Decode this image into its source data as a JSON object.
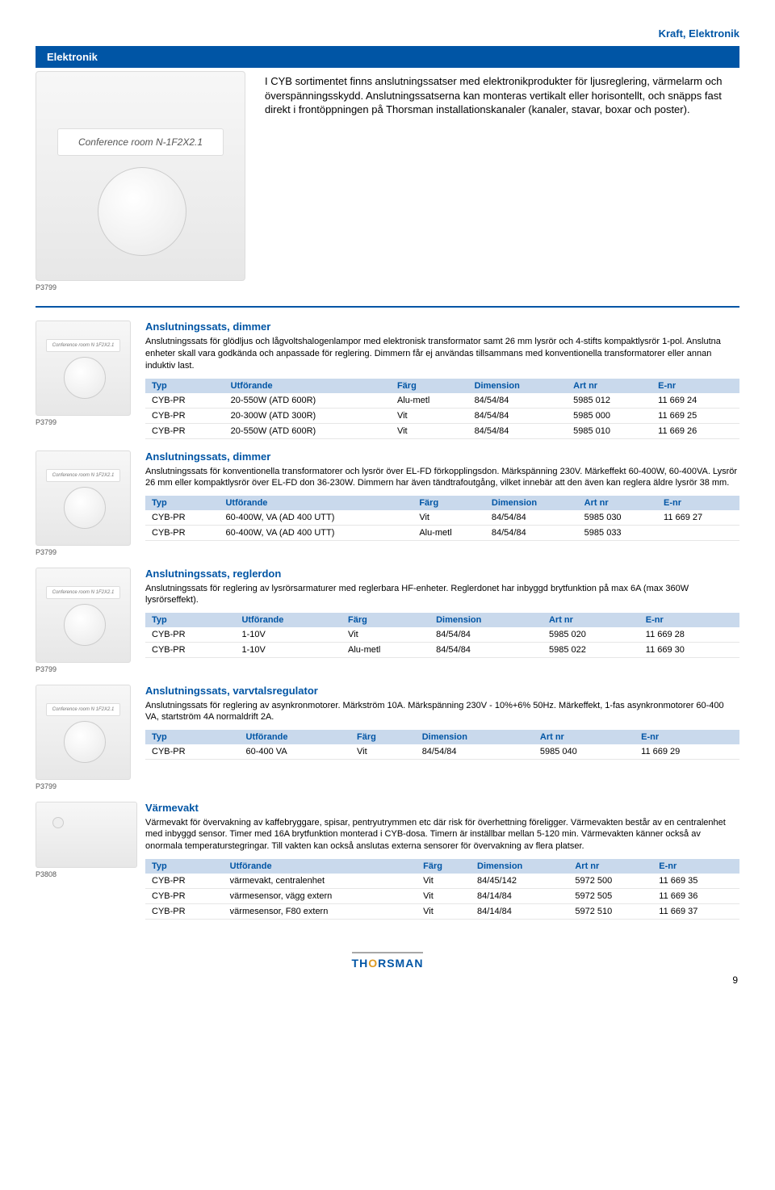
{
  "header": {
    "category": "Kraft, Elektronik",
    "bar": "Elektronik"
  },
  "hero": {
    "label": "Conference room N-1F2X2.1",
    "code": "P3799",
    "intro": "I CYB sortimentet finns anslutningssatser med elektronikprodukter för ljusreglering, värmelarm och överspänningsskydd. Anslutningssatserna kan monteras vertikalt eller horisontellt, och snäpps fast direkt i frontöppningen på Thorsman installationskanaler (kanaler, stavar, boxar och poster)."
  },
  "table_headers": [
    "Typ",
    "Utförande",
    "Färg",
    "Dimension",
    "Art nr",
    "E-nr"
  ],
  "sections": [
    {
      "code": "P3799",
      "thumb": "knob",
      "title": "Anslutningssats, dimmer",
      "desc": "Anslutningssats för glödljus och lågvoltshalogenlampor med elektronisk transformator samt 26 mm lysrör och 4-stifts kompaktlysrör 1-pol. Anslutna enheter skall vara godkända och anpassade för reglering. Dimmern får ej användas tillsammans med konventionella transformatorer eller annan induktiv last.",
      "rows": [
        [
          "CYB-PR",
          "20-550W (ATD 600R)",
          "Alu-metl",
          "84/54/84",
          "5985 012",
          "11 669 24"
        ],
        [
          "CYB-PR",
          "20-300W (ATD 300R)",
          "Vit",
          "84/54/84",
          "5985 000",
          "11 669 25"
        ],
        [
          "CYB-PR",
          "20-550W (ATD 600R)",
          "Vit",
          "84/54/84",
          "5985 010",
          "11 669 26"
        ]
      ]
    },
    {
      "code": "P3799",
      "thumb": "knob",
      "title": "Anslutningssats, dimmer",
      "desc": "Anslutningssats för konventionella transformatorer och lysrör över EL-FD förkopplingsdon. Märkspänning 230V. Märkeffekt 60-400W, 60-400VA. Lysrör 26 mm eller kompaktlysrör över EL-FD don 36-230W. Dimmern har även tändtrafoutgång, vilket innebär att den även kan reglera äldre lysrör 38 mm.",
      "rows": [
        [
          "CYB-PR",
          "60-400W, VA (AD 400 UTT)",
          "Vit",
          "84/54/84",
          "5985 030",
          "11 669 27"
        ],
        [
          "CYB-PR",
          "60-400W, VA (AD 400 UTT)",
          "Alu-metl",
          "84/54/84",
          "5985 033",
          ""
        ]
      ]
    },
    {
      "code": "P3799",
      "thumb": "knob",
      "title": "Anslutningssats, reglerdon",
      "desc": "Anslutningssats för reglering av lysrörsarmaturer med reglerbara HF-enheter. Reglerdonet har inbyggd brytfunktion på max 6A (max 360W lysrörseffekt).",
      "rows": [
        [
          "CYB-PR",
          "1-10V",
          "Vit",
          "84/54/84",
          "5985 020",
          "11 669 28"
        ],
        [
          "CYB-PR",
          "1-10V",
          "Alu-metl",
          "84/54/84",
          "5985 022",
          "11 669 30"
        ]
      ]
    },
    {
      "code": "P3799",
      "thumb": "knob",
      "title": "Anslutningssats, varvtalsregulator",
      "desc": "Anslutningssats för reglering av asynkronmotorer. Märkström 10A. Märkspänning 230V - 10%+6% 50Hz. Märkeffekt, 1-fas asynkronmotorer 60-400 VA, startström 4A normaldrift 2A.",
      "rows": [
        [
          "CYB-PR",
          "60-400 VA",
          "Vit",
          "84/54/84",
          "5985 040",
          "11 669 29"
        ]
      ]
    },
    {
      "code": "P3808",
      "thumb": "wide",
      "title": "Värmevakt",
      "desc": "Värmevakt för övervakning av kaffebryggare, spisar, pentryutrymmen etc där risk för överhettning föreligger. Värmevakten består av en centralenhet med inbyggd sensor. Timer med 16A brytfunktion monterad i CYB-dosa. Timern är inställbar mellan 5-120 min. Värmevakten känner också av onormala temperaturstegringar. Till vakten kan också anslutas externa sensorer för övervakning av flera platser.",
      "rows": [
        [
          "CYB-PR",
          "värmevakt, centralenhet",
          "Vit",
          "84/45/142",
          "5972 500",
          "11 669 35"
        ],
        [
          "CYB-PR",
          "värmesensor, vägg extern",
          "Vit",
          "84/14/84",
          "5972 505",
          "11 669 36"
        ],
        [
          "CYB-PR",
          "värmesensor, F80 extern",
          "Vit",
          "84/14/84",
          "5972 510",
          "11 669 37"
        ]
      ]
    }
  ],
  "footer": {
    "logo_pre": "TH",
    "logo_o": "O",
    "logo_post": "RSMAN",
    "pagenum": "9"
  }
}
